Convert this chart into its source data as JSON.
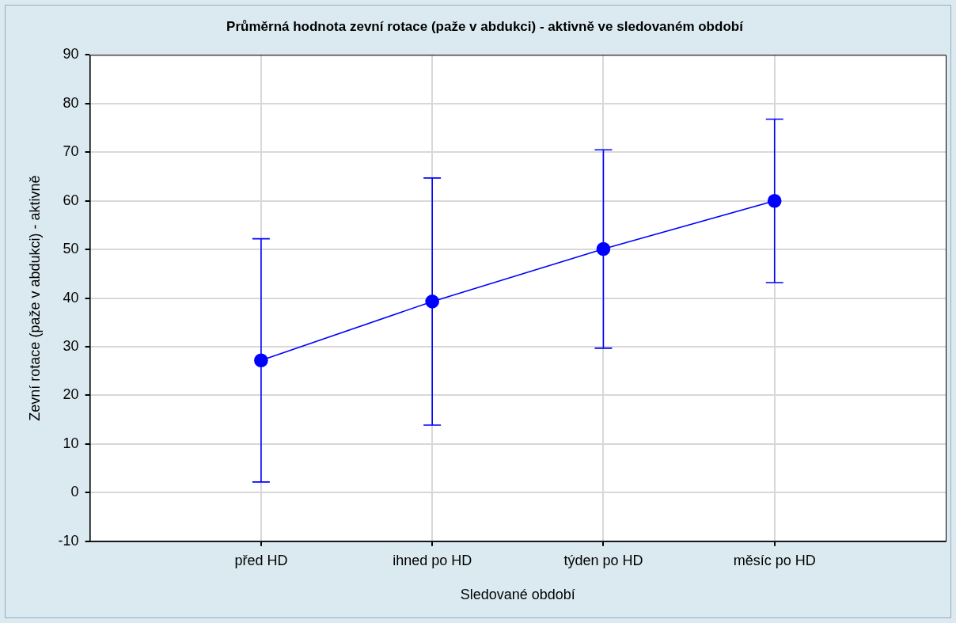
{
  "chart_data": {
    "type": "line",
    "title": "Průměrná hodnota zevní rotace (paže v abdukci) - aktivně ve sledovaném období",
    "xlabel": "Sledované období",
    "ylabel": "Zevní rotace (paže v abdukci) - aktivně",
    "categories": [
      "před HD",
      "ihned po HD",
      "týden po HD",
      "měsíc po HD"
    ],
    "values": [
      27.2,
      39.3,
      50.1,
      60.0
    ],
    "errors": [
      25.0,
      25.4,
      20.4,
      16.8
    ],
    "color": "#0000ff",
    "ylim": [
      -10,
      90
    ],
    "yticks": [
      -10,
      0,
      10,
      20,
      30,
      40,
      50,
      60,
      70,
      80,
      90
    ],
    "grid": true,
    "marker": "circle",
    "line_style": "solid"
  }
}
